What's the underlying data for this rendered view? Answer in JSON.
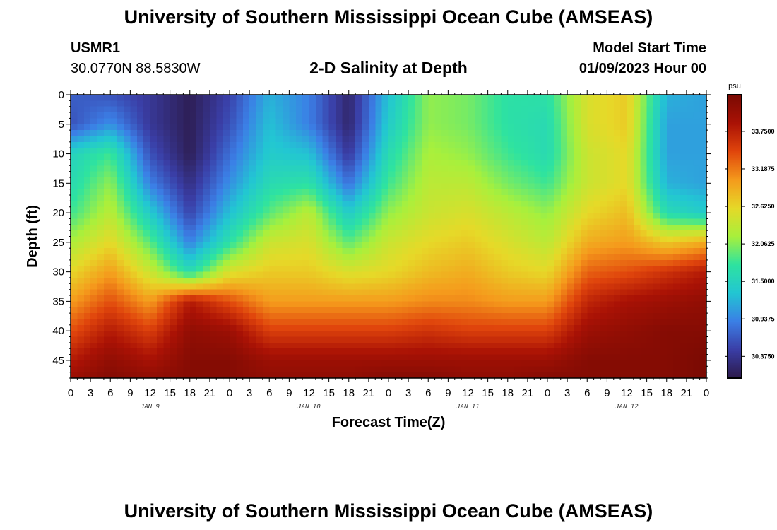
{
  "header": {
    "title": "University of Southern Mississippi Ocean Cube (AMSEAS)",
    "station_name": "USMR1",
    "station_coords": "30.0770N  88.5830W",
    "product": "2-D Salinity at Depth",
    "start_label": "Model Start Time",
    "start_value": "01/09/2023 Hour 00"
  },
  "footer": {
    "title": "University of Southern Mississippi Ocean Cube (AMSEAS)"
  },
  "chart_data": {
    "type": "heatmap",
    "title": "2-D Salinity at Depth",
    "xlabel": "Forecast Time(Z)",
    "ylabel": "Depth (ft)",
    "x_unit": "hours since 01/09/2023 00Z",
    "x_range": [
      0,
      96
    ],
    "y_range": [
      0,
      48
    ],
    "y_inverted": true,
    "x_tick_labels": [
      "0",
      "3",
      "6",
      "9",
      "12",
      "15",
      "18",
      "21",
      "0",
      "3",
      "6",
      "9",
      "12",
      "15",
      "18",
      "21",
      "0",
      "3",
      "6",
      "9",
      "12",
      "15",
      "18",
      "21",
      "0",
      "3",
      "6",
      "9",
      "12",
      "15",
      "18",
      "21",
      "0"
    ],
    "day_labels": [
      {
        "label": "JAN 9",
        "hour": 12
      },
      {
        "label": "JAN 10",
        "hour": 36
      },
      {
        "label": "JAN 11",
        "hour": 60
      },
      {
        "label": "JAN 12",
        "hour": 84
      }
    ],
    "y_ticks": [
      0,
      5,
      10,
      15,
      20,
      25,
      30,
      35,
      40,
      45
    ],
    "colorbar": {
      "unit": "psu",
      "min": 30.05,
      "max": 34.3,
      "tick_values": [
        33.75,
        33.1875,
        32.625,
        32.0625,
        31.5,
        30.9375,
        30.375
      ],
      "tick_labels": [
        "33.7500",
        "33.1875",
        "32.6250",
        "32.0625",
        "31.5000",
        "30.9375",
        "30.3750"
      ],
      "colors": [
        "#2c1a4a",
        "#3a3ea6",
        "#3b7fe6",
        "#22c6d3",
        "#2ee3a0",
        "#a8f03c",
        "#e6d928",
        "#f59a1c",
        "#e0450c",
        "#aa1205",
        "#7a0a03"
      ]
    },
    "hours": [
      0,
      6,
      12,
      18,
      24,
      30,
      36,
      42,
      48,
      54,
      60,
      66,
      72,
      78,
      84,
      90,
      96
    ],
    "depths_ft": [
      0,
      5,
      10,
      15,
      20,
      25,
      30,
      35,
      40,
      45,
      48
    ],
    "salinity_psu": [
      [
        30.7,
        30.6,
        31.5,
        31.6,
        31.8,
        32.2,
        32.6,
        33.0,
        33.4,
        33.8,
        34.0
      ],
      [
        30.6,
        31.0,
        31.8,
        32.1,
        32.3,
        32.6,
        33.0,
        33.4,
        33.8,
        34.1,
        34.2
      ],
      [
        30.4,
        30.4,
        30.6,
        30.9,
        31.4,
        31.9,
        32.4,
        33.0,
        33.5,
        33.9,
        34.1
      ],
      [
        30.1,
        30.1,
        30.1,
        30.3,
        30.5,
        30.9,
        31.6,
        33.8,
        34.1,
        34.2,
        34.2
      ],
      [
        30.5,
        30.6,
        30.8,
        31.0,
        31.3,
        31.7,
        32.5,
        33.4,
        34.0,
        34.2,
        34.2
      ],
      [
        31.2,
        31.3,
        31.4,
        31.6,
        31.9,
        32.4,
        32.7,
        33.0,
        33.5,
        34.0,
        34.1
      ],
      [
        30.9,
        30.9,
        31.3,
        31.7,
        32.3,
        32.5,
        32.7,
        33.0,
        33.5,
        34.0,
        34.1
      ],
      [
        30.2,
        30.2,
        30.4,
        30.8,
        31.4,
        31.9,
        32.5,
        33.0,
        33.5,
        34.0,
        34.1
      ],
      [
        31.3,
        31.4,
        31.6,
        31.8,
        32.1,
        32.4,
        32.6,
        33.0,
        33.5,
        34.0,
        34.2
      ],
      [
        32.1,
        32.1,
        32.2,
        32.3,
        32.4,
        32.6,
        32.8,
        33.1,
        33.6,
        34.0,
        34.2
      ],
      [
        32.0,
        32.0,
        32.1,
        32.3,
        32.5,
        32.7,
        32.9,
        33.1,
        33.5,
        34.0,
        34.1
      ],
      [
        31.7,
        31.7,
        31.8,
        32.0,
        32.3,
        32.5,
        32.7,
        33.0,
        33.5,
        34.0,
        34.1
      ],
      [
        31.7,
        31.6,
        31.6,
        31.8,
        32.1,
        32.3,
        32.6,
        33.0,
        33.5,
        34.0,
        34.2
      ],
      [
        32.5,
        32.5,
        32.4,
        32.4,
        32.6,
        32.9,
        33.3,
        33.7,
        34.0,
        34.2,
        34.2
      ],
      [
        32.7,
        32.7,
        32.6,
        32.6,
        32.8,
        33.0,
        33.4,
        33.9,
        34.1,
        34.2,
        34.2
      ],
      [
        31.2,
        31.1,
        31.1,
        31.2,
        31.6,
        32.7,
        33.6,
        34.0,
        34.2,
        34.2,
        34.2
      ],
      [
        31.1,
        31.1,
        31.1,
        31.1,
        31.4,
        32.9,
        33.8,
        34.1,
        34.2,
        34.3,
        34.3
      ]
    ]
  }
}
